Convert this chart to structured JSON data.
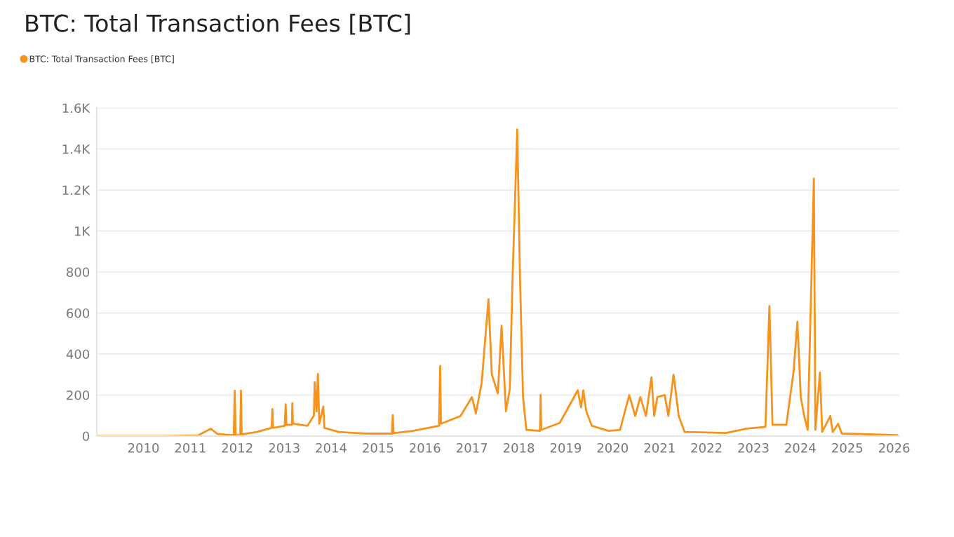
{
  "chart_data": {
    "type": "line",
    "title": "BTC: Total Transaction Fees [BTC]",
    "x": [
      "2009-01-03",
      "2010-06-01",
      "2011-03-01",
      "2011-06-10",
      "2011-08-01",
      "2011-12-05",
      "2011-12-13",
      "2011-12-20",
      "2012-01-25",
      "2012-01-30",
      "2012-02-05",
      "2012-06-01",
      "2012-09-25",
      "2012-10-01",
      "2012-10-06",
      "2013-01-05",
      "2013-01-12",
      "2013-01-18",
      "2013-03-02",
      "2013-03-05",
      "2013-03-10",
      "2013-07-01",
      "2013-08-20",
      "2013-08-26",
      "2013-09-10",
      "2013-09-20",
      "2013-10-01",
      "2013-11-01",
      "2013-11-10",
      "2014-03-01",
      "2014-10-01",
      "2015-04-20",
      "2015-04-26",
      "2015-05-02",
      "2015-10-01",
      "2016-04-20",
      "2016-04-29",
      "2016-05-05",
      "2016-10-05",
      "2017-01-01",
      "2017-02-01",
      "2017-03-18",
      "2017-05-10",
      "2017-06-05",
      "2017-07-22",
      "2017-08-20",
      "2017-09-23",
      "2017-10-23",
      "2017-11-14",
      "2017-12-20",
      "2018-01-10",
      "2018-02-03",
      "2018-03-01",
      "2018-06-15",
      "2018-06-20",
      "2018-06-25",
      "2018-11-16",
      "2019-04-05",
      "2019-05-01",
      "2019-05-18",
      "2019-06-10",
      "2019-07-23",
      "2019-12-01",
      "2020-02-28",
      "2020-05-10",
      "2020-06-25",
      "2020-08-04",
      "2020-09-17",
      "2020-10-30",
      "2020-11-20",
      "2020-12-15",
      "2021-02-10",
      "2021-03-10",
      "2021-04-20",
      "2021-05-30",
      "2021-07-15",
      "2022-06-01",
      "2022-11-10",
      "2023-04-05",
      "2023-05-06",
      "2023-05-30",
      "2023-09-15",
      "2023-11-10",
      "2023-12-10",
      "2024-01-05",
      "2024-02-01",
      "2024-02-28",
      "2024-04-16",
      "2024-04-28",
      "2024-06-02",
      "2024-06-20",
      "2024-08-22",
      "2024-09-10",
      "2024-10-22",
      "2024-11-20",
      "2026-01-26"
    ],
    "series": [
      {
        "name": "BTC: Total Transaction Fees [BTC]",
        "color": "#f7931a",
        "values": [
          0,
          0,
          3,
          36,
          10,
          5,
          221,
          5,
          5,
          221,
          8,
          20,
          40,
          132,
          40,
          50,
          155,
          55,
          55,
          160,
          60,
          50,
          100,
          262,
          120,
          303,
          60,
          144,
          40,
          20,
          12,
          12,
          102,
          14,
          25,
          50,
          342,
          60,
          98,
          190,
          110,
          260,
          668,
          300,
          208,
          538,
          121,
          230,
          782,
          1495,
          782,
          190,
          30,
          25,
          200,
          30,
          64,
          223,
          140,
          223,
          121,
          50,
          25,
          30,
          200,
          98,
          190,
          98,
          287,
          98,
          190,
          200,
          98,
          299,
          98,
          20,
          15,
          36,
          45,
          634,
          55,
          55,
          315,
          558,
          190,
          98,
          30,
          1256,
          30,
          310,
          20,
          98,
          20,
          60,
          12,
          5
        ]
      }
    ],
    "xlim": [
      "2009-01-03",
      "2026-02-10"
    ],
    "xticks": [
      "2010",
      "2011",
      "2012",
      "2013",
      "2014",
      "2015",
      "2016",
      "2017",
      "2018",
      "2019",
      "2020",
      "2021",
      "2022",
      "2023",
      "2024",
      "2025",
      "2026"
    ],
    "ylim": [
      0,
      1600
    ],
    "yticks": [
      0,
      200,
      400,
      600,
      800,
      {
        "value": 1000,
        "label": "1K"
      },
      {
        "value": 1200,
        "label": "1.2K"
      },
      {
        "value": 1400,
        "label": "1.4K"
      },
      {
        "value": 1600,
        "label": "1.6K"
      }
    ],
    "grid": "y",
    "legend": "top left",
    "marker": "none",
    "line_style": "solid"
  }
}
